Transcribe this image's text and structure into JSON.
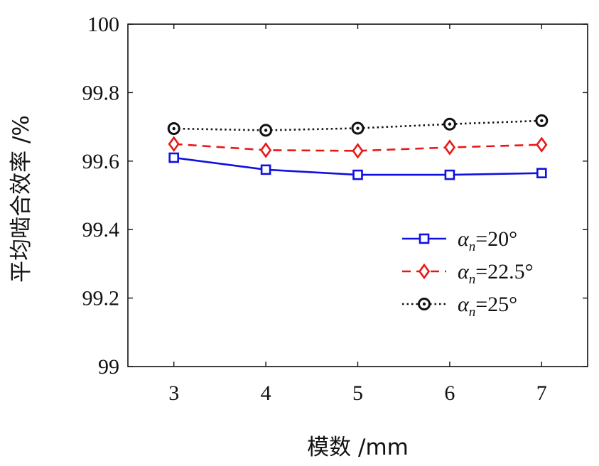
{
  "chart_data": {
    "type": "line",
    "xlabel": "模数 /mm",
    "ylabel": "平均啮合效率 /%",
    "x": [
      3,
      4,
      5,
      6,
      7
    ],
    "xlim": [
      2.5,
      7.5
    ],
    "ylim": [
      99,
      100
    ],
    "xticks": [
      3,
      4,
      5,
      6,
      7
    ],
    "yticks": [
      99,
      99.2,
      99.4,
      99.6,
      99.8,
      100
    ],
    "ytick_labels": [
      "99",
      "99.2",
      "99.4",
      "99.6",
      "99.8",
      "100"
    ],
    "grid": false,
    "legend_position": "lower-right",
    "series": [
      {
        "name": "αn=20°",
        "legend": {
          "greek": "α",
          "sub": "n",
          "rest": "=20°"
        },
        "values": [
          99.61,
          99.575,
          99.56,
          99.56,
          99.565
        ],
        "color": "#1010e0",
        "dash": "solid",
        "marker": "square"
      },
      {
        "name": "αn=22.5°",
        "legend": {
          "greek": "α",
          "sub": "n",
          "rest": "=22.5°"
        },
        "values": [
          99.65,
          99.632,
          99.63,
          99.64,
          99.648
        ],
        "color": "#e81818",
        "dash": "dashed",
        "marker": "diamond"
      },
      {
        "name": "αn=25°",
        "legend": {
          "greek": "α",
          "sub": "n",
          "rest": "=25°"
        },
        "values": [
          99.695,
          99.69,
          99.696,
          99.708,
          99.718
        ],
        "color": "#111111",
        "dash": "dotted",
        "marker": "circle"
      }
    ]
  }
}
